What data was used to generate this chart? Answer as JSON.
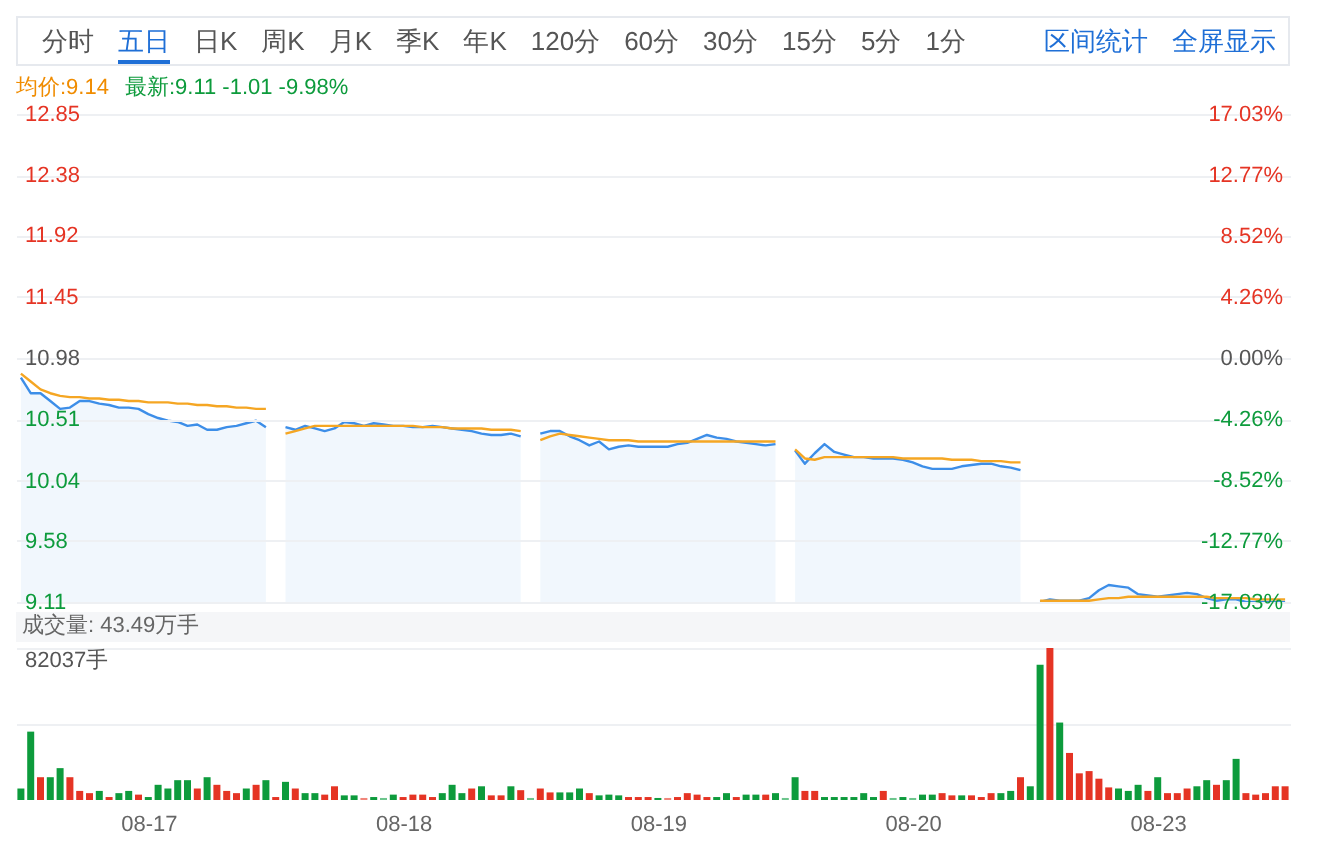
{
  "chart_data": [
    {
      "type": "line",
      "annotations": [
        "分时",
        "五日",
        "日K",
        "周K",
        "月K",
        "季K",
        "年K",
        "120分",
        "60分",
        "30分",
        "15分",
        "5分",
        "1分",
        "区间统计",
        "全屏显示",
        "均价:9.14",
        "最新:9.11 -1.01 -9.98%"
      ],
      "categories": [
        null,
        null,
        null,
        null,
        null,
        null,
        null,
        null,
        null,
        null,
        null,
        null,
        null,
        null,
        null,
        null,
        null,
        null,
        null,
        null,
        null,
        null,
        null,
        null,
        null,
        null,
        null,
        null,
        null,
        null,
        null,
        null,
        null,
        null,
        null,
        null,
        null,
        null,
        null,
        null,
        null,
        null,
        null,
        null,
        null,
        null,
        null,
        null,
        null,
        null,
        null,
        null,
        null,
        null,
        null,
        null,
        null,
        null,
        null,
        null,
        null,
        null,
        null,
        null,
        null,
        null,
        null,
        null,
        null,
        null,
        null,
        null,
        null,
        null,
        null,
        null,
        null,
        null,
        null,
        null,
        null,
        null,
        null,
        null,
        null,
        null,
        null,
        null,
        null,
        null,
        null,
        null,
        null,
        null,
        null,
        null,
        null,
        null,
        null,
        null,
        null,
        null,
        null,
        null,
        null,
        null,
        null,
        null,
        null,
        null,
        null,
        null,
        null,
        null,
        null,
        null,
        null,
        null,
        null,
        null,
        null,
        null,
        null,
        null,
        null,
        null,
        null,
        null,
        null,
        null
      ],
      "ylim": [
        9.11,
        12.85
      ],
      "yticks": [
        9.11,
        9.58,
        10.04,
        10.51,
        10.98,
        11.45,
        11.92,
        12.38,
        12.85
      ],
      "y2lim": [
        -17.03,
        17.03
      ],
      "y2ticks": [
        {
          "value": -17.03,
          "label": "-17.03%"
        },
        {
          "value": -12.77,
          "label": "-12.77%"
        },
        {
          "value": -8.52,
          "label": "-8.52%"
        },
        {
          "value": -4.26,
          "label": "-4.26%"
        },
        {
          "value": 0,
          "label": "0.00%"
        },
        {
          "value": 4.26,
          "label": "4.26%"
        },
        {
          "value": 8.52,
          "label": "8.52%"
        },
        {
          "value": 12.77,
          "label": "12.77%"
        },
        {
          "value": 17.03,
          "label": "17.03%"
        }
      ],
      "grid": "y",
      "tick_labels": "y",
      "series": [
        {
          "type": "area",
          "color": "#3d8ee8",
          "values": [
            10.83,
            10.71,
            10.71,
            10.65,
            10.59,
            10.6,
            10.65,
            10.65,
            10.63,
            10.62,
            10.6,
            10.6,
            10.59,
            10.55,
            10.52,
            10.5,
            10.49,
            10.46,
            10.47,
            10.43,
            10.43,
            10.45,
            10.46,
            10.48,
            10.5,
            10.45,
            null,
            10.45,
            10.43,
            10.46,
            10.44,
            10.42,
            10.44,
            10.49,
            10.48,
            10.46,
            10.48,
            10.47,
            10.46,
            10.46,
            10.45,
            10.45,
            10.46,
            10.45,
            10.44,
            10.43,
            10.42,
            10.4,
            10.39,
            10.39,
            10.4,
            10.38,
            null,
            10.4,
            10.42,
            10.42,
            10.38,
            10.35,
            10.31,
            10.34,
            10.28,
            10.3,
            10.31,
            10.3,
            10.3,
            10.3,
            10.3,
            10.32,
            10.33,
            10.36,
            10.39,
            10.37,
            10.36,
            10.34,
            10.33,
            10.32,
            10.31,
            10.32,
            null,
            10.27,
            10.17,
            10.25,
            10.32,
            10.26,
            10.24,
            10.22,
            10.22,
            10.21,
            10.21,
            10.21,
            10.2,
            10.18,
            10.15,
            10.13,
            10.13,
            10.13,
            10.15,
            10.16,
            10.17,
            10.17,
            10.15,
            10.14,
            10.12,
            null,
            9.11,
            9.13,
            9.12,
            9.12,
            9.12,
            9.14,
            9.2,
            9.24,
            9.23,
            9.22,
            9.17,
            9.16,
            9.15,
            9.16,
            9.17,
            9.18,
            9.17,
            9.14,
            9.12,
            9.13,
            9.13,
            9.11,
            9.11,
            9.11,
            9.11,
            9.11
          ]
        },
        {
          "type": "line",
          "color": "#f5a623",
          "values": [
            10.86,
            10.8,
            10.74,
            10.71,
            10.69,
            10.68,
            10.68,
            10.67,
            10.67,
            10.66,
            10.66,
            10.65,
            10.65,
            10.64,
            10.64,
            10.64,
            10.63,
            10.63,
            10.62,
            10.62,
            10.61,
            10.61,
            10.6,
            10.6,
            10.59,
            10.59,
            null,
            10.4,
            10.42,
            10.44,
            10.46,
            10.46,
            10.46,
            10.46,
            10.46,
            10.46,
            10.46,
            10.46,
            10.46,
            10.46,
            10.46,
            10.45,
            10.45,
            10.45,
            10.44,
            10.44,
            10.44,
            10.44,
            10.43,
            10.43,
            10.43,
            10.42,
            null,
            10.35,
            10.38,
            10.4,
            10.39,
            10.38,
            10.37,
            10.36,
            10.35,
            10.35,
            10.35,
            10.34,
            10.34,
            10.34,
            10.34,
            10.34,
            10.34,
            10.34,
            10.34,
            10.34,
            10.34,
            10.34,
            10.34,
            10.34,
            10.34,
            10.34,
            null,
            10.28,
            10.21,
            10.2,
            10.22,
            10.22,
            10.22,
            10.22,
            10.22,
            10.22,
            10.22,
            10.22,
            10.21,
            10.21,
            10.21,
            10.21,
            10.21,
            10.2,
            10.2,
            10.2,
            10.19,
            10.19,
            10.19,
            10.18,
            10.18,
            null,
            9.12,
            9.12,
            9.12,
            9.12,
            9.12,
            9.12,
            9.13,
            9.14,
            9.14,
            9.15,
            9.15,
            9.15,
            9.15,
            9.15,
            9.15,
            9.15,
            9.15,
            9.15,
            9.14,
            9.14,
            9.14,
            9.14,
            9.13,
            9.13,
            9.13,
            9.13
          ]
        }
      ]
    },
    {
      "type": "bar",
      "title": "成交量: 43.49万手",
      "categories": [
        null,
        null,
        null,
        null,
        null,
        null,
        null,
        null,
        null,
        null,
        null,
        null,
        null,
        "08-17",
        null,
        null,
        null,
        null,
        null,
        null,
        null,
        null,
        null,
        null,
        null,
        null,
        null,
        null,
        null,
        null,
        null,
        null,
        null,
        null,
        null,
        null,
        null,
        null,
        null,
        "08-18",
        null,
        null,
        null,
        null,
        null,
        null,
        null,
        null,
        null,
        null,
        null,
        null,
        null,
        null,
        null,
        null,
        null,
        null,
        null,
        null,
        null,
        null,
        null,
        null,
        null,
        "08-19",
        null,
        null,
        null,
        null,
        null,
        null,
        null,
        null,
        null,
        null,
        null,
        null,
        null,
        null,
        null,
        null,
        null,
        null,
        null,
        null,
        null,
        null,
        null,
        null,
        null,
        "08-20",
        null,
        null,
        null,
        null,
        null,
        null,
        null,
        null,
        null,
        null,
        null,
        null,
        null,
        null,
        null,
        null,
        null,
        null,
        null,
        null,
        null,
        null,
        null,
        null,
        "08-23",
        null,
        null,
        null,
        null,
        null,
        null,
        null,
        null,
        null,
        null,
        null,
        null,
        null
      ],
      "ylim": [
        0,
        82037
      ],
      "yticks": [
        {
          "value": 41018.5,
          "label": null
        },
        {
          "value": 82037,
          "label": "82037手"
        }
      ],
      "grid": "y",
      "values": [
        6200,
        36900,
        12300,
        12300,
        17200,
        12300,
        4900,
        3700,
        4900,
        1600,
        3700,
        4900,
        2900,
        1600,
        8200,
        6200,
        10700,
        10700,
        6200,
        12300,
        8200,
        4900,
        3700,
        6200,
        8200,
        10700,
        1600,
        9800,
        6200,
        3700,
        3700,
        2900,
        7400,
        2500,
        2500,
        1100,
        1600,
        1100,
        2900,
        1600,
        2900,
        2900,
        1600,
        3700,
        8200,
        3700,
        6200,
        7400,
        2500,
        2500,
        7400,
        5300,
        1100,
        6200,
        4100,
        4100,
        4100,
        6200,
        3700,
        2500,
        2900,
        2500,
        1600,
        1600,
        1600,
        1100,
        1100,
        1600,
        3700,
        2900,
        1600,
        1600,
        3700,
        1600,
        2900,
        2900,
        2900,
        3700,
        1100,
        12300,
        4900,
        4900,
        1600,
        1600,
        1600,
        1600,
        3700,
        1600,
        4900,
        1100,
        1600,
        1100,
        2900,
        2900,
        3700,
        2500,
        2500,
        2500,
        1600,
        3700,
        3700,
        4900,
        12300,
        7400,
        73000,
        82037,
        41800,
        25400,
        14400,
        15600,
        11500,
        6800,
        6200,
        4900,
        8200,
        4900,
        12300,
        3700,
        3700,
        6200,
        7400,
        10700,
        8200,
        10700,
        22200,
        3700,
        2900,
        3700,
        7400,
        7400
      ],
      "colors": [
        "#0d9b3c",
        "#0d9b3c",
        "#e53424",
        "#0d9b3c",
        "#0d9b3c",
        "#e53424",
        "#e53424",
        "#e53424",
        "#0d9b3c",
        "#e53424",
        "#0d9b3c",
        "#0d9b3c",
        "#e53424",
        "#0d9b3c",
        "#0d9b3c",
        "#0d9b3c",
        "#0d9b3c",
        "#0d9b3c",
        "#e53424",
        "#0d9b3c",
        "#e53424",
        "#e53424",
        "#e53424",
        "#0d9b3c",
        "#e53424",
        "#0d9b3c",
        "#e53424",
        "#0d9b3c",
        "#e53424",
        "#0d9b3c",
        "#0d9b3c",
        "#e53424",
        "#e53424",
        "#0d9b3c",
        "#0d9b3c",
        "#f0857a",
        "#0d9b3c",
        "#6cc58c",
        "#0d9b3c",
        "#e53424",
        "#e53424",
        "#e53424",
        "#e53424",
        "#0d9b3c",
        "#0d9b3c",
        "#0d9b3c",
        "#e53424",
        "#0d9b3c",
        "#e53424",
        "#e53424",
        "#0d9b3c",
        "#e53424",
        "#6cc58c",
        "#e53424",
        "#e53424",
        "#0d9b3c",
        "#0d9b3c",
        "#0d9b3c",
        "#e53424",
        "#0d9b3c",
        "#0d9b3c",
        "#0d9b3c",
        "#e53424",
        "#e53424",
        "#e53424",
        "#0d9b3c",
        "#f0857a",
        "#e53424",
        "#e53424",
        "#e53424",
        "#e53424",
        "#0d9b3c",
        "#0d9b3c",
        "#e53424",
        "#0d9b3c",
        "#0d9b3c",
        "#e53424",
        "#0d9b3c",
        "#6cc58c",
        "#0d9b3c",
        "#e53424",
        "#e53424",
        "#0d9b3c",
        "#0d9b3c",
        "#0d9b3c",
        "#0d9b3c",
        "#0d9b3c",
        "#0d9b3c",
        "#e53424",
        "#6cc58c",
        "#0d9b3c",
        "#6cc58c",
        "#0d9b3c",
        "#0d9b3c",
        "#e53424",
        "#e53424",
        "#0d9b3c",
        "#e53424",
        "#e53424",
        "#e53424",
        "#0d9b3c",
        "#0d9b3c",
        "#e53424",
        "#0d9b3c",
        "#0d9b3c",
        "#e53424",
        "#0d9b3c",
        "#e53424",
        "#e53424",
        "#e53424",
        "#e53424",
        "#e53424",
        "#0d9b3c",
        "#0d9b3c",
        "#0d9b3c",
        "#e53424",
        "#0d9b3c",
        "#e53424",
        "#e53424",
        "#e53424",
        "#0d9b3c",
        "#0d9b3c",
        "#e53424",
        "#0d9b3c",
        "#0d9b3c",
        "#e53424",
        "#e53424",
        "#e53424",
        "#e53424",
        "#e53424"
      ]
    }
  ]
}
